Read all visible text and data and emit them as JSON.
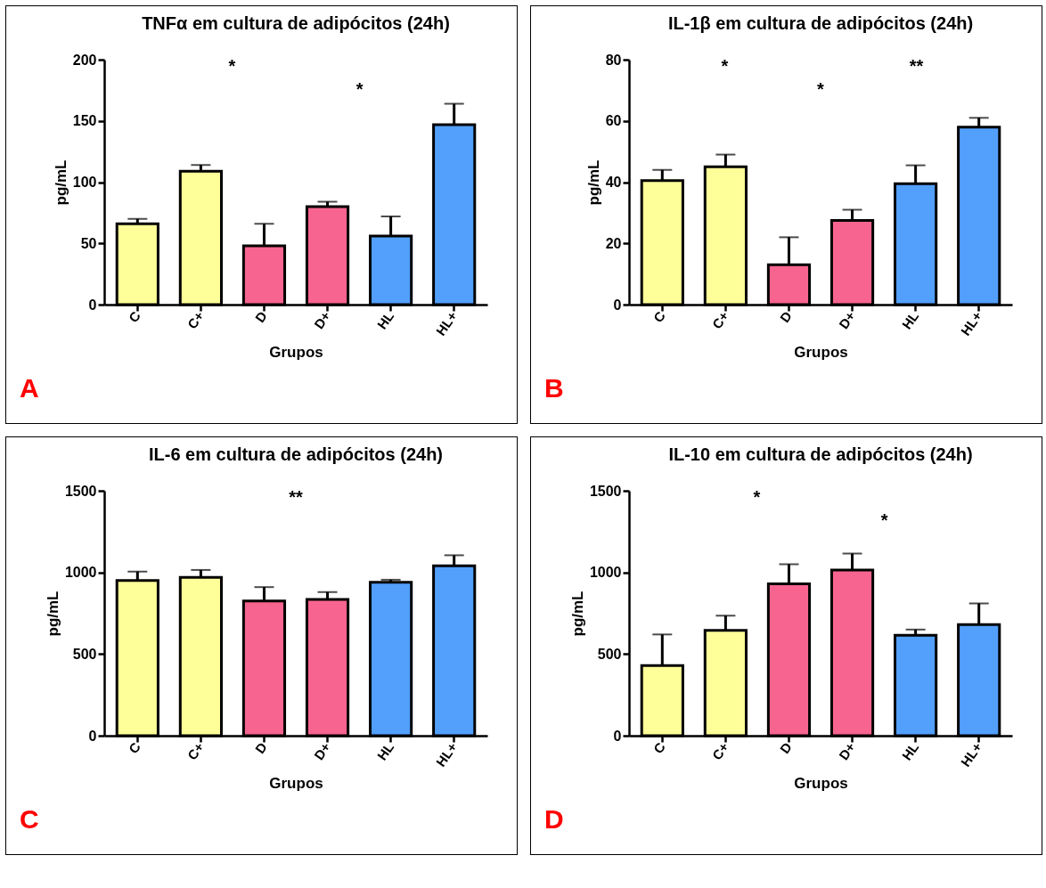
{
  "chart_data": [
    {
      "type": "bar",
      "title": "TNFα em cultura de adipócitos (24h)",
      "xlabel": "Grupos",
      "ylabel": "pg/mL",
      "categories": [
        "C",
        "C+",
        "D",
        "D+",
        "HL",
        "HL+"
      ],
      "values": [
        66,
        109,
        48,
        80,
        56,
        147
      ],
      "errors": [
        4,
        5,
        18,
        4,
        16,
        17
      ],
      "colors": [
        "#ffff99",
        "#ffff99",
        "#f7648f",
        "#f7648f",
        "#529ffc",
        "#529ffc"
      ],
      "ylim": [
        0,
        200
      ],
      "yticks": [
        0,
        50,
        100,
        150,
        200
      ],
      "annotations": [
        "*",
        "*",
        "A"
      ]
    },
    {
      "type": "bar",
      "title": "IL-1β em cultura de adipócitos (24h)",
      "xlabel": "Grupos",
      "ylabel": "pg/mL",
      "categories": [
        "C",
        "C+",
        "D",
        "D+",
        "HL",
        "HL+"
      ],
      "values": [
        40.5,
        45,
        13,
        27.5,
        39.5,
        58
      ],
      "errors": [
        3.5,
        4,
        9,
        3.5,
        6,
        3
      ],
      "colors": [
        "#ffff99",
        "#ffff99",
        "#f7648f",
        "#f7648f",
        "#529ffc",
        "#529ffc"
      ],
      "ylim": [
        0,
        80
      ],
      "yticks": [
        0,
        20,
        40,
        60,
        80
      ],
      "annotations": [
        "*",
        "*",
        "**",
        "B"
      ]
    },
    {
      "type": "bar",
      "title": "IL-6 em cultura de adipócitos (24h)",
      "xlabel": "Grupos",
      "ylabel": "pg/mL",
      "categories": [
        "C",
        "C+",
        "D",
        "D+",
        "HL",
        "HL+"
      ],
      "values": [
        950,
        970,
        825,
        835,
        940,
        1040
      ],
      "errors": [
        55,
        45,
        85,
        45,
        15,
        65
      ],
      "colors": [
        "#ffff99",
        "#ffff99",
        "#f7648f",
        "#f7648f",
        "#529ffc",
        "#529ffc"
      ],
      "ylim": [
        0,
        1500
      ],
      "yticks": [
        0,
        500,
        1000,
        1500
      ],
      "annotations": [
        "**",
        "C"
      ]
    },
    {
      "type": "bar",
      "title": "IL-10 em cultura de adipócitos (24h)",
      "xlabel": "Grupos",
      "ylabel": "pg/mL",
      "categories": [
        "C",
        "C+",
        "D",
        "D+",
        "HL",
        "HL+"
      ],
      "values": [
        430,
        645,
        930,
        1015,
        615,
        680
      ],
      "errors": [
        190,
        90,
        120,
        100,
        35,
        130
      ],
      "colors": [
        "#ffff99",
        "#ffff99",
        "#f7648f",
        "#f7648f",
        "#529ffc",
        "#529ffc"
      ],
      "ylim": [
        0,
        1500
      ],
      "yticks": [
        0,
        500,
        1000,
        1500
      ],
      "annotations": [
        "*",
        "*",
        "D"
      ]
    }
  ]
}
